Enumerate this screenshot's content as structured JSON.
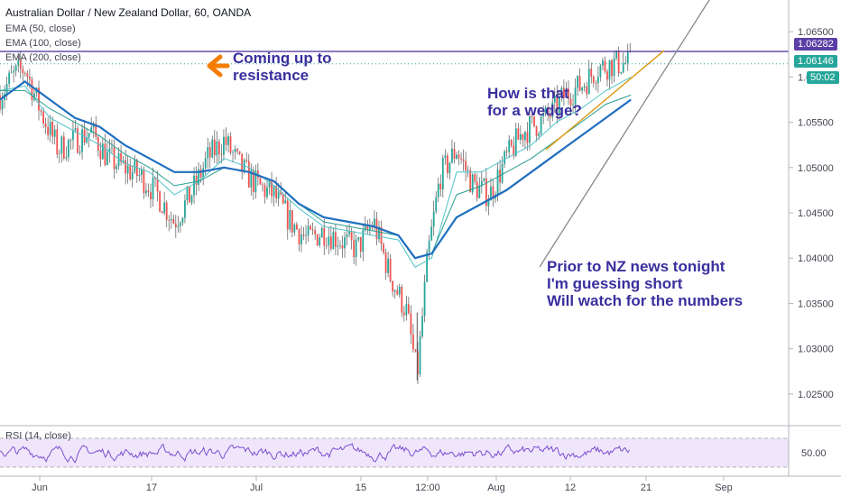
{
  "header": {
    "symbol": "Australian Dollar / New Zealand Dollar, 60, OANDA",
    "ema_labels": [
      "EMA (50, close)",
      "EMA (100, close)",
      "EMA (200, close)"
    ]
  },
  "annotations": {
    "resistance": [
      "Coming up to",
      "resistance"
    ],
    "wedge": [
      "How is that",
      "for a wedge?"
    ],
    "news": [
      "Prior to NZ news tonight",
      "I'm guessing short",
      "Will watch for the numbers"
    ]
  },
  "price_tags": {
    "resistance": "1.06282",
    "last": "1.06146",
    "countdown": "50:02"
  },
  "colors": {
    "resistance_line": "#5b3fa6",
    "ema50": "#4fc3c8",
    "ema100": "#2a9d8f",
    "ema200": "#1f6fbf",
    "wedge_line": "#e0a020",
    "annotation": "#3a2f9e",
    "arrow": "#f57c00",
    "last_tag": "#26a69a",
    "rsi": "#7b4fd0"
  },
  "chart_data": [
    {
      "type": "line",
      "title": "Australian Dollar / New Zealand Dollar, 60, OANDA",
      "x_ticks": [
        "Jun",
        "17",
        "Jul",
        "15",
        "12:00",
        "Aug",
        "12",
        "21",
        "Sep"
      ],
      "y_ticks": [
        1.065,
        1.06,
        1.055,
        1.05,
        1.045,
        1.04,
        1.035,
        1.03,
        1.025
      ],
      "ylim": [
        1.0215,
        1.0685
      ],
      "resistance_level": 1.06282,
      "last_price": 1.06146,
      "series": [
        {
          "name": "Price",
          "x": [
            0,
            3,
            6,
            10,
            14,
            18,
            22,
            26,
            30,
            34,
            38,
            42,
            46,
            50,
            54,
            58,
            62,
            66,
            70,
            74,
            78,
            82,
            86,
            90,
            94,
            98,
            100.5,
            103,
            106,
            110,
            114,
            118,
            122,
            126,
            130,
            133,
            136,
            140,
            144,
            148,
            152
          ],
          "y": [
            1.058,
            1.06,
            1.061,
            1.056,
            1.052,
            1.053,
            1.054,
            1.051,
            1.05,
            1.049,
            1.047,
            1.044,
            1.047,
            1.051,
            1.053,
            1.05,
            1.048,
            1.047,
            1.044,
            1.042,
            1.043,
            1.042,
            1.041,
            1.044,
            1.038,
            1.034,
            1.027,
            1.04,
            1.049,
            1.052,
            1.048,
            1.047,
            1.051,
            1.054,
            1.055,
            1.056,
            1.058,
            1.059,
            1.061,
            1.0615,
            1.0615
          ]
        },
        {
          "name": "EMA (50, close)",
          "x": [
            0,
            6,
            12,
            18,
            24,
            30,
            36,
            42,
            48,
            54,
            60,
            66,
            72,
            78,
            84,
            90,
            96,
            100,
            104,
            110,
            116,
            122,
            128,
            134,
            140,
            146,
            152
          ],
          "y": [
            1.0585,
            1.059,
            1.0555,
            1.054,
            1.0525,
            1.0505,
            1.0495,
            1.047,
            1.0485,
            1.051,
            1.05,
            1.048,
            1.0455,
            1.0435,
            1.043,
            1.0425,
            1.042,
            1.039,
            1.04,
            1.0495,
            1.0495,
            1.051,
            1.0525,
            1.055,
            1.0565,
            1.0585,
            1.06
          ]
        },
        {
          "name": "EMA (100, close)",
          "x": [
            0,
            6,
            12,
            18,
            24,
            30,
            36,
            42,
            48,
            54,
            60,
            66,
            72,
            78,
            84,
            90,
            96,
            100,
            104,
            110,
            116,
            122,
            128,
            134,
            140,
            146,
            152
          ],
          "y": [
            1.0585,
            1.0585,
            1.0565,
            1.055,
            1.0535,
            1.0515,
            1.05,
            1.048,
            1.0485,
            1.05,
            1.0495,
            1.0485,
            1.046,
            1.044,
            1.0435,
            1.043,
            1.0425,
            1.04,
            1.0405,
            1.047,
            1.048,
            1.0495,
            1.051,
            1.053,
            1.055,
            1.057,
            1.058
          ]
        },
        {
          "name": "EMA (200, close)",
          "x": [
            0,
            6,
            12,
            18,
            24,
            30,
            36,
            42,
            48,
            54,
            60,
            66,
            72,
            78,
            84,
            90,
            96,
            100,
            104,
            110,
            116,
            122,
            128,
            134,
            140,
            146,
            152
          ],
          "y": [
            1.0575,
            1.0595,
            1.0575,
            1.0555,
            1.0545,
            1.0525,
            1.051,
            1.0495,
            1.0495,
            1.05,
            1.0495,
            1.0485,
            1.046,
            1.0445,
            1.044,
            1.0435,
            1.0425,
            1.04,
            1.0405,
            1.0445,
            1.046,
            1.0475,
            1.0495,
            1.0515,
            1.0535,
            1.0555,
            1.0575
          ]
        }
      ]
    },
    {
      "type": "line",
      "title": "RSI (14, close)",
      "y_ticks": [
        50
      ],
      "band": [
        30,
        70
      ],
      "series": [
        {
          "name": "RSI (14, close)",
          "values_note": ""
        }
      ]
    }
  ]
}
